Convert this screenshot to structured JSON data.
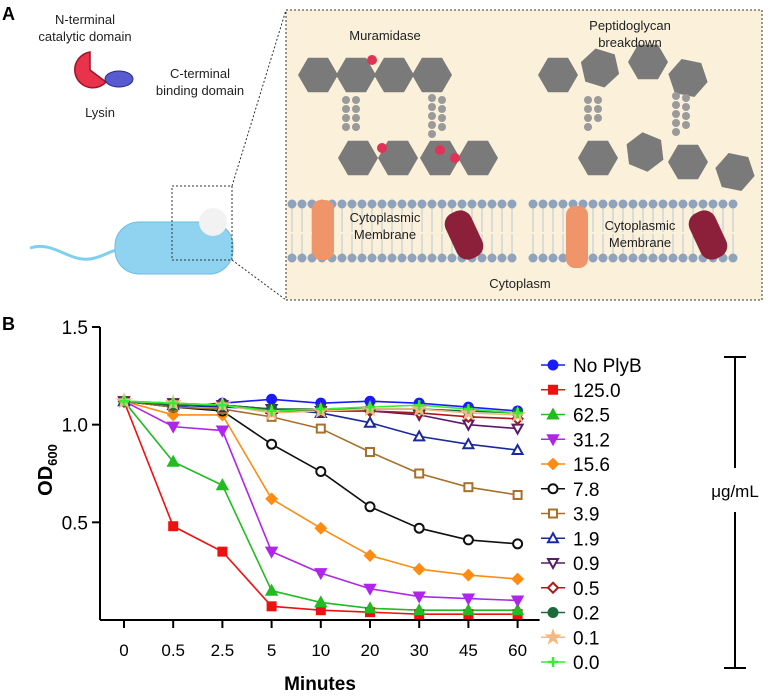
{
  "panel_a": {
    "label": "A",
    "n_terminal": [
      "N-terminal",
      "catalytic domain"
    ],
    "c_terminal": [
      "C-terminal",
      "binding domain"
    ],
    "lysin": "Lysin",
    "muramidase": "Muramidase",
    "breakdown": [
      "Peptidoglycan",
      "breakdown"
    ],
    "membrane_left": [
      "Cytoplasmic",
      "Membrane"
    ],
    "membrane_right": [
      "Cytoplasmic",
      "Membrane"
    ],
    "cytoplasm": "Cytoplasm"
  },
  "chart_data": {
    "type": "line",
    "panel_label": "B",
    "x_label": "Minutes",
    "y_label": "OD",
    "y_label_sub": "600",
    "bracket_label": "μg/mL",
    "categories": [
      "0",
      "0.5",
      "2.5",
      "5",
      "10",
      "20",
      "30",
      "45",
      "60"
    ],
    "ylim": [
      0,
      1.5
    ],
    "yticks": [
      0.5,
      {
        "value": 1,
        "label": "1.0"
      },
      1.5
    ],
    "series": [
      {
        "name": "No PlyB",
        "color": "#1a1aff",
        "marker": "circle",
        "filled": true,
        "values": [
          1.12,
          1.09,
          1.11,
          1.13,
          1.11,
          1.12,
          1.11,
          1.09,
          1.07
        ]
      },
      {
        "name": "125.0",
        "color": "#ee1111",
        "marker": "square",
        "filled": true,
        "values": [
          1.12,
          0.48,
          0.35,
          0.07,
          0.05,
          0.04,
          0.03,
          0.03,
          0.03
        ]
      },
      {
        "name": "62.5",
        "color": "#22bb22",
        "marker": "triangle",
        "filled": true,
        "values": [
          1.12,
          0.81,
          0.69,
          0.15,
          0.09,
          0.06,
          0.05,
          0.05,
          0.05
        ]
      },
      {
        "name": "31.2",
        "color": "#b026e8",
        "marker": "triangle-down",
        "filled": true,
        "values": [
          1.12,
          0.99,
          0.97,
          0.35,
          0.24,
          0.16,
          0.12,
          0.11,
          0.1
        ]
      },
      {
        "name": "15.6",
        "color": "#ff8c10",
        "marker": "diamond",
        "filled": true,
        "values": [
          1.12,
          1.05,
          1.05,
          0.62,
          0.47,
          0.33,
          0.26,
          0.23,
          0.21
        ]
      },
      {
        "name": "7.8",
        "color": "#111111",
        "marker": "circle",
        "filled": false,
        "values": [
          1.12,
          1.09,
          1.07,
          0.9,
          0.76,
          0.58,
          0.47,
          0.41,
          0.39
        ]
      },
      {
        "name": "3.9",
        "color": "#a8702a",
        "marker": "square",
        "filled": false,
        "values": [
          1.12,
          1.09,
          1.08,
          1.04,
          0.98,
          0.86,
          0.75,
          0.68,
          0.64
        ]
      },
      {
        "name": "1.9",
        "color": "#1a2a99",
        "marker": "triangle",
        "filled": false,
        "values": [
          1.12,
          1.1,
          1.09,
          1.08,
          1.06,
          1.01,
          0.94,
          0.9,
          0.87
        ]
      },
      {
        "name": "0.9",
        "color": "#5a1a6a",
        "marker": "triangle-down",
        "filled": false,
        "values": [
          1.12,
          1.11,
          1.1,
          1.08,
          1.07,
          1.07,
          1.05,
          1.0,
          0.98
        ]
      },
      {
        "name": "0.5",
        "color": "#aa1a1a",
        "marker": "diamond",
        "filled": false,
        "values": [
          1.12,
          1.1,
          1.1,
          1.07,
          1.07,
          1.07,
          1.06,
          1.04,
          1.03
        ]
      },
      {
        "name": "0.2",
        "color": "#1a6a3a",
        "marker": "circle",
        "filled": true,
        "values": [
          1.12,
          1.1,
          1.1,
          1.08,
          1.08,
          1.08,
          1.08,
          1.07,
          1.06
        ]
      },
      {
        "name": "0.1",
        "color": "#f5b880",
        "marker": "star",
        "filled": true,
        "values": [
          1.12,
          1.11,
          1.1,
          1.06,
          1.07,
          1.08,
          1.08,
          1.06,
          1.05
        ]
      },
      {
        "name": "0.0",
        "color": "#33ee33",
        "marker": "plus",
        "filled": true,
        "values": [
          1.12,
          1.11,
          1.1,
          1.07,
          1.08,
          1.09,
          1.1,
          1.08,
          1.06
        ]
      }
    ]
  }
}
